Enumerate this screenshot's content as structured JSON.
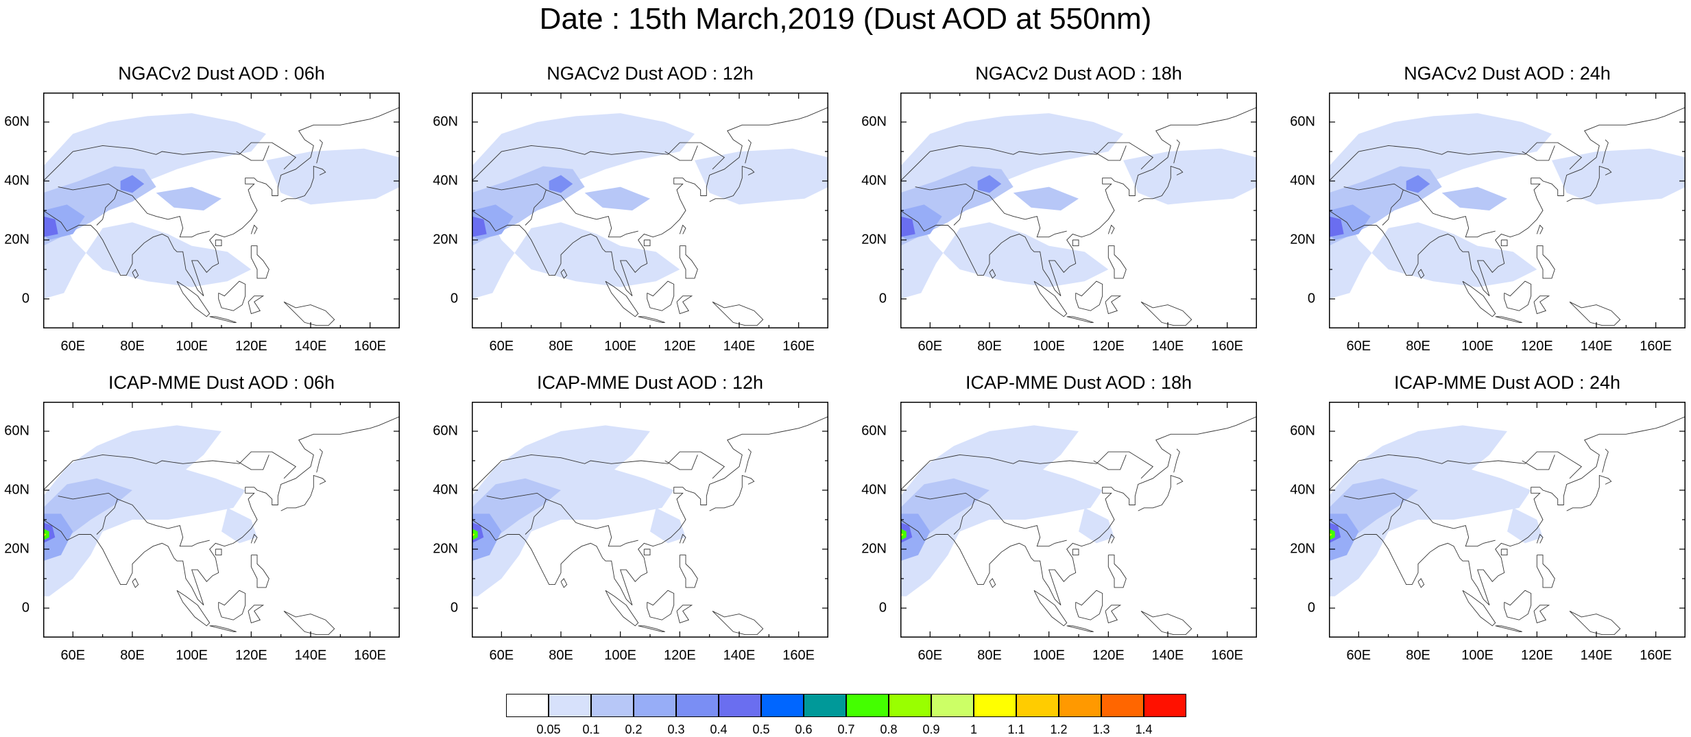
{
  "title": "Date : 15th March,2019 (Dust AOD at 550nm)",
  "lat_ticks": [
    {
      "value": 60,
      "label": "60N"
    },
    {
      "value": 40,
      "label": "40N"
    },
    {
      "value": 20,
      "label": "20N"
    },
    {
      "value": 0,
      "label": "0"
    }
  ],
  "lon_ticks": [
    {
      "value": 60,
      "label": "60E"
    },
    {
      "value": 80,
      "label": "80E"
    },
    {
      "value": 100,
      "label": "100E"
    },
    {
      "value": 120,
      "label": "120E"
    },
    {
      "value": 140,
      "label": "140E"
    },
    {
      "value": 160,
      "label": "160E"
    }
  ],
  "extent": {
    "lon": [
      50,
      170
    ],
    "lat": [
      -10,
      70
    ]
  },
  "colorbar": {
    "colors": [
      "#ffffff",
      "#d7e1fb",
      "#b7c7f7",
      "#97adf7",
      "#7a8ef4",
      "#6a6ef0",
      "#0066ff",
      "#009999",
      "#44ff00",
      "#99ff00",
      "#ccff66",
      "#ffff00",
      "#ffcc00",
      "#ff9900",
      "#ff6600",
      "#ff1100"
    ],
    "labels": [
      "0.05",
      "0.1",
      "0.2",
      "0.3",
      "0.4",
      "0.5",
      "0.6",
      "0.7",
      "0.8",
      "0.9",
      "1",
      "1.1",
      "1.2",
      "1.3",
      "1.4"
    ]
  },
  "panels": [
    {
      "title": "NGACv2 Dust AOD : 06h",
      "model": "NGACv2",
      "lead": "06h"
    },
    {
      "title": "NGACv2 Dust AOD : 12h",
      "model": "NGACv2",
      "lead": "12h"
    },
    {
      "title": "NGACv2 Dust AOD : 18h",
      "model": "NGACv2",
      "lead": "18h"
    },
    {
      "title": "NGACv2 Dust AOD : 24h",
      "model": "NGACv2",
      "lead": "24h"
    },
    {
      "title": "ICAP-MME Dust AOD : 06h",
      "model": "ICAP-MME",
      "lead": "06h"
    },
    {
      "title": "ICAP-MME Dust AOD : 12h",
      "model": "ICAP-MME",
      "lead": "12h"
    },
    {
      "title": "ICAP-MME Dust AOD : 18h",
      "model": "ICAP-MME",
      "lead": "18h"
    },
    {
      "title": "ICAP-MME Dust AOD : 24h",
      "model": "ICAP-MME",
      "lead": "24h"
    }
  ]
}
